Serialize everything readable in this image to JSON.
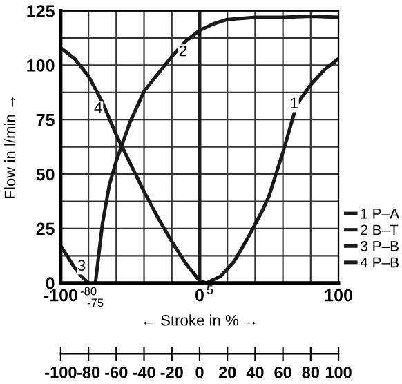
{
  "chart_data": {
    "type": "line",
    "xlabel": "← Stroke in % →",
    "ylabel": "Flow in l/min →",
    "xlim": [
      -100,
      100
    ],
    "xticks": [
      -100,
      {
        "value": -80,
        "label": null
      },
      {
        "value": -60,
        "label": null
      },
      {
        "value": -40,
        "label": null
      },
      {
        "value": -20,
        "label": null
      },
      0,
      {
        "value": 20,
        "label": null
      },
      {
        "value": 40,
        "label": null
      },
      {
        "value": 60,
        "label": null
      },
      {
        "value": 80,
        "label": null
      },
      100
    ],
    "ylim": [
      0,
      125
    ],
    "yticks": [
      0,
      {
        "value": 12.5,
        "label": null
      },
      25,
      {
        "value": 37.5,
        "label": null
      },
      50,
      {
        "value": 62.5,
        "label": null
      },
      75,
      {
        "value": 87.5,
        "label": null
      },
      100,
      {
        "value": 112.5,
        "label": null
      },
      125
    ],
    "x2lim": [
      -100,
      100
    ],
    "x2ticks": [
      -100,
      -80,
      -60,
      -40,
      -20,
      0,
      20,
      40,
      60,
      80,
      100
    ],
    "grid": true,
    "legend": "right",
    "marker": "none",
    "line_style": "solid",
    "ref_lines": [
      {
        "axis": "x",
        "value": 0,
        "label": null
      }
    ],
    "series": [
      {
        "name": "1 P–A",
        "color": "#1a1a1a",
        "x": [
          5,
          15,
          25,
          35,
          45,
          50,
          60,
          70,
          80,
          90,
          100
        ],
        "values": [
          0,
          3,
          10,
          21,
          33,
          40,
          60,
          82,
          91,
          98,
          103
        ]
      },
      {
        "name": "2 B–T",
        "color": "#1a1a1a",
        "x": [
          -75,
          -70,
          -65,
          -60,
          -55,
          -50,
          -45,
          -40,
          -30,
          -20,
          -10,
          0,
          10,
          20,
          40,
          60,
          80,
          100
        ],
        "values": [
          0,
          27,
          45,
          56,
          65,
          74,
          81,
          88,
          96,
          104,
          111,
          116,
          119,
          121,
          122,
          122,
          122.5,
          122
        ]
      },
      {
        "name": "3 P–B",
        "color": "#1a1a1a",
        "x": [
          -100,
          -95,
          -90,
          -85,
          -80
        ],
        "values": [
          17,
          12,
          7,
          3,
          0
        ]
      },
      {
        "name": "4 P–B",
        "color": "#1a1a1a",
        "x": [
          -100,
          -90,
          -80,
          -70,
          -60,
          -50,
          -40,
          -30,
          -20,
          -10,
          0,
          5
        ],
        "values": [
          108,
          103,
          95,
          83,
          68,
          55,
          42,
          30,
          19,
          9,
          1,
          0
        ]
      }
    ],
    "annotations": [
      {
        "text": "1",
        "x": 68,
        "y": 82
      },
      {
        "text": "2",
        "x": -12,
        "y": 106
      },
      {
        "text": "3",
        "x": -85,
        "y": 7.5
      },
      {
        "text": "4",
        "x": -73,
        "y": 80
      },
      {
        "text": "-80",
        "x": -80,
        "y": 0
      },
      {
        "text": "-75",
        "x": -75,
        "y": 0
      },
      {
        "text": "5",
        "x": 5,
        "y": 0
      }
    ]
  }
}
